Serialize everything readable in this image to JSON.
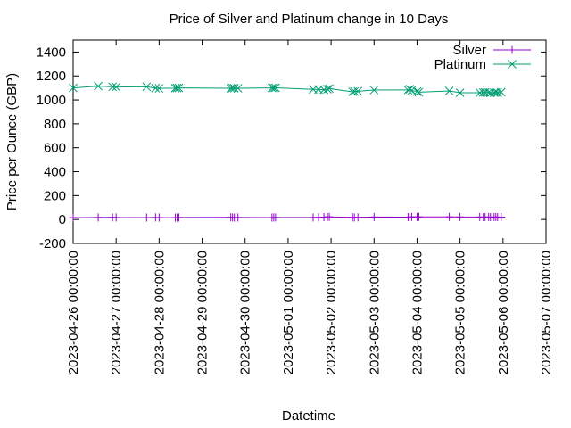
{
  "chart_data": {
    "type": "line",
    "title": "Price of Silver and Platinum change in 10 Days",
    "xlabel": "Datetime",
    "ylabel": "Price per Ounce (GBP)",
    "xlim": [
      "2023-04-26 00:00:00",
      "2023-05-07 00:00:00"
    ],
    "ylim": [
      -200,
      1500
    ],
    "x_ticks": [
      "2023-04-26 00:00:00",
      "2023-04-27 00:00:00",
      "2023-04-28 00:00:00",
      "2023-04-29 00:00:00",
      "2023-04-30 00:00:00",
      "2023-05-01 00:00:00",
      "2023-05-02 00:00:00",
      "2023-05-03 00:00:00",
      "2023-05-04 00:00:00",
      "2023-05-05 00:00:00",
      "2023-05-06 00:00:00",
      "2023-05-07 00:00:00"
    ],
    "y_ticks": [
      -200,
      0,
      200,
      400,
      600,
      800,
      1000,
      1200,
      1400
    ],
    "grid": false,
    "legend_position": "top-right",
    "series": [
      {
        "name": "Silver",
        "color": "#9400d3",
        "marker": "plus",
        "x": [
          "2023-04-26 00:00:00",
          "2023-04-26 14:00:00",
          "2023-04-26 22:00:00",
          "2023-04-27 00:00:00",
          "2023-04-27 17:00:00",
          "2023-04-27 22:00:00",
          "2023-04-28 00:00:00",
          "2023-04-28 09:00:00",
          "2023-04-28 10:00:00",
          "2023-04-28 11:00:00",
          "2023-04-29 16:00:00",
          "2023-04-29 17:00:00",
          "2023-04-29 18:00:00",
          "2023-04-29 20:00:00",
          "2023-04-30 15:00:00",
          "2023-04-30 16:00:00",
          "2023-04-30 17:00:00",
          "2023-05-01 14:00:00",
          "2023-05-01 17:00:00",
          "2023-05-01 20:00:00",
          "2023-05-01 22:00:00",
          "2023-05-01 23:00:00",
          "2023-05-02 12:00:00",
          "2023-05-02 13:00:00",
          "2023-05-02 15:00:00",
          "2023-05-03 00:00:00",
          "2023-05-03 19:00:00",
          "2023-05-03 20:00:00",
          "2023-05-03 21:00:00",
          "2023-05-04 00:00:00",
          "2023-05-04 01:00:00",
          "2023-05-04 18:00:00",
          "2023-05-05 00:00:00",
          "2023-05-05 11:00:00",
          "2023-05-05 13:00:00",
          "2023-05-05 14:00:00",
          "2023-05-05 16:00:00",
          "2023-05-05 17:00:00",
          "2023-05-05 19:00:00",
          "2023-05-05 20:00:00",
          "2023-05-05 21:00:00",
          "2023-05-05 23:00:00"
        ],
        "values": [
          15,
          17,
          18,
          17,
          16,
          17,
          16,
          15,
          16,
          17,
          18,
          17,
          16,
          17,
          16,
          17,
          17,
          17,
          18,
          20,
          22,
          22,
          18,
          17,
          18,
          21,
          20,
          21,
          22,
          21,
          22,
          22,
          21,
          21,
          20,
          21,
          21,
          20,
          21,
          21,
          20,
          20
        ]
      },
      {
        "name": "Platinum",
        "color": "#009e73",
        "marker": "cross",
        "x": [
          "2023-04-26 00:00:00",
          "2023-04-26 14:00:00",
          "2023-04-26 22:00:00",
          "2023-04-27 00:00:00",
          "2023-04-27 17:00:00",
          "2023-04-27 22:00:00",
          "2023-04-28 00:00:00",
          "2023-04-28 09:00:00",
          "2023-04-28 10:00:00",
          "2023-04-28 11:00:00",
          "2023-04-29 16:00:00",
          "2023-04-29 17:00:00",
          "2023-04-29 18:00:00",
          "2023-04-29 20:00:00",
          "2023-04-30 15:00:00",
          "2023-04-30 16:00:00",
          "2023-04-30 17:00:00",
          "2023-05-01 14:00:00",
          "2023-05-01 17:00:00",
          "2023-05-01 20:00:00",
          "2023-05-01 22:00:00",
          "2023-05-01 23:00:00",
          "2023-05-02 12:00:00",
          "2023-05-02 13:00:00",
          "2023-05-02 15:00:00",
          "2023-05-03 00:00:00",
          "2023-05-03 19:00:00",
          "2023-05-03 20:00:00",
          "2023-05-03 21:00:00",
          "2023-05-04 00:00:00",
          "2023-05-04 01:00:00",
          "2023-05-04 18:00:00",
          "2023-05-05 00:00:00",
          "2023-05-05 11:00:00",
          "2023-05-05 13:00:00",
          "2023-05-05 14:00:00",
          "2023-05-05 16:00:00",
          "2023-05-05 17:00:00",
          "2023-05-05 19:00:00",
          "2023-05-05 20:00:00",
          "2023-05-05 21:00:00",
          "2023-05-05 23:00:00"
        ],
        "values": [
          1100,
          1115,
          1110,
          1108,
          1110,
          1098,
          1096,
          1098,
          1099,
          1100,
          1097,
          1099,
          1098,
          1097,
          1100,
          1100,
          1101,
          1088,
          1087,
          1085,
          1090,
          1095,
          1068,
          1070,
          1072,
          1082,
          1083,
          1090,
          1080,
          1070,
          1065,
          1075,
          1060,
          1060,
          1062,
          1063,
          1062,
          1058,
          1060,
          1062,
          1060,
          1065
        ]
      }
    ]
  }
}
